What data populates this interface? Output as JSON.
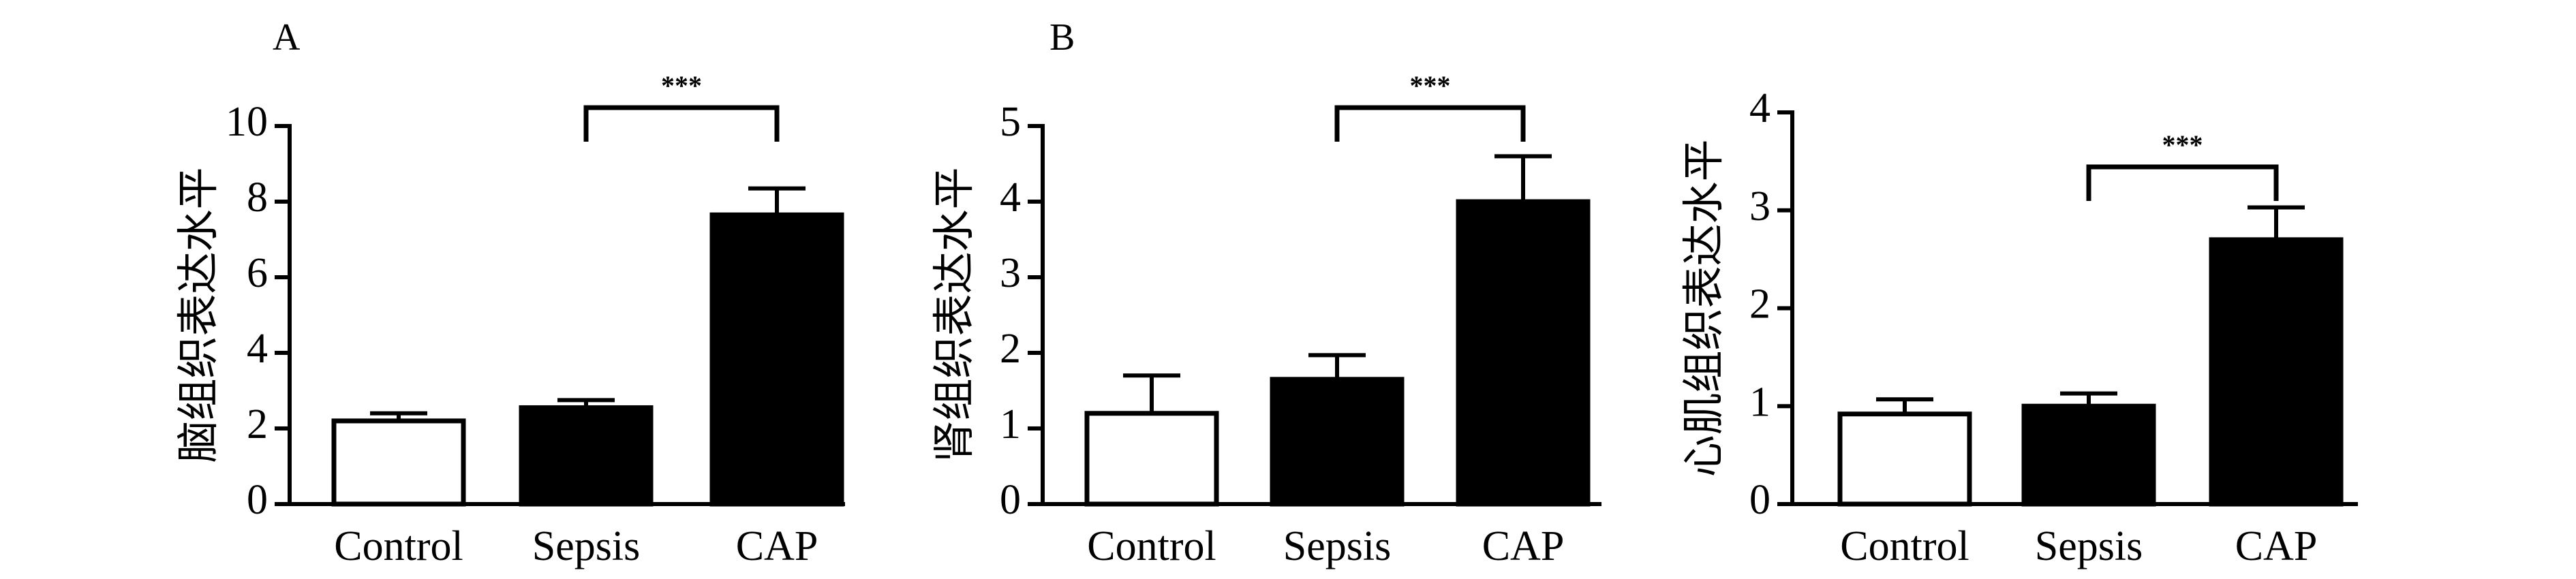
{
  "chart_data": [
    {
      "type": "bar",
      "panel_label": "A",
      "ylabel": "脑组织表达水平",
      "categories": [
        "Control",
        "Sepsis",
        "CAP"
      ],
      "values": [
        2.2,
        2.55,
        7.65
      ],
      "errors": [
        0.2,
        0.2,
        0.7
      ],
      "fills": [
        "#ffffff",
        "#000000",
        "#000000"
      ],
      "ylim": [
        0,
        10
      ],
      "yticks": [
        "0",
        "2",
        "4",
        "6",
        "8",
        "10"
      ],
      "significance": {
        "from": "Sepsis",
        "to": "CAP",
        "label": "***"
      }
    },
    {
      "type": "bar",
      "panel_label": "B",
      "ylabel": "肾组织表达水平",
      "categories": [
        "Control",
        "Sepsis",
        "CAP"
      ],
      "values": [
        1.2,
        1.65,
        4.0
      ],
      "errors": [
        0.5,
        0.32,
        0.6
      ],
      "fills": [
        "#ffffff",
        "#000000",
        "#000000"
      ],
      "ylim": [
        0,
        5
      ],
      "yticks": [
        "0",
        "1",
        "2",
        "3",
        "4",
        "5"
      ],
      "significance": {
        "from": "Sepsis",
        "to": "CAP",
        "label": "***"
      }
    },
    {
      "type": "bar",
      "panel_label": "",
      "ylabel": "心肌组织表达水平",
      "categories": [
        "Control",
        "Sepsis",
        "CAP"
      ],
      "values": [
        0.92,
        1.0,
        2.7
      ],
      "errors": [
        0.15,
        0.13,
        0.33
      ],
      "fills": [
        "#ffffff",
        "#000000",
        "#000000"
      ],
      "ylim": [
        0,
        4
      ],
      "yticks": [
        "0",
        "1",
        "2",
        "3",
        "4"
      ],
      "significance": {
        "from": "Sepsis",
        "to": "CAP",
        "label": "***"
      }
    }
  ]
}
